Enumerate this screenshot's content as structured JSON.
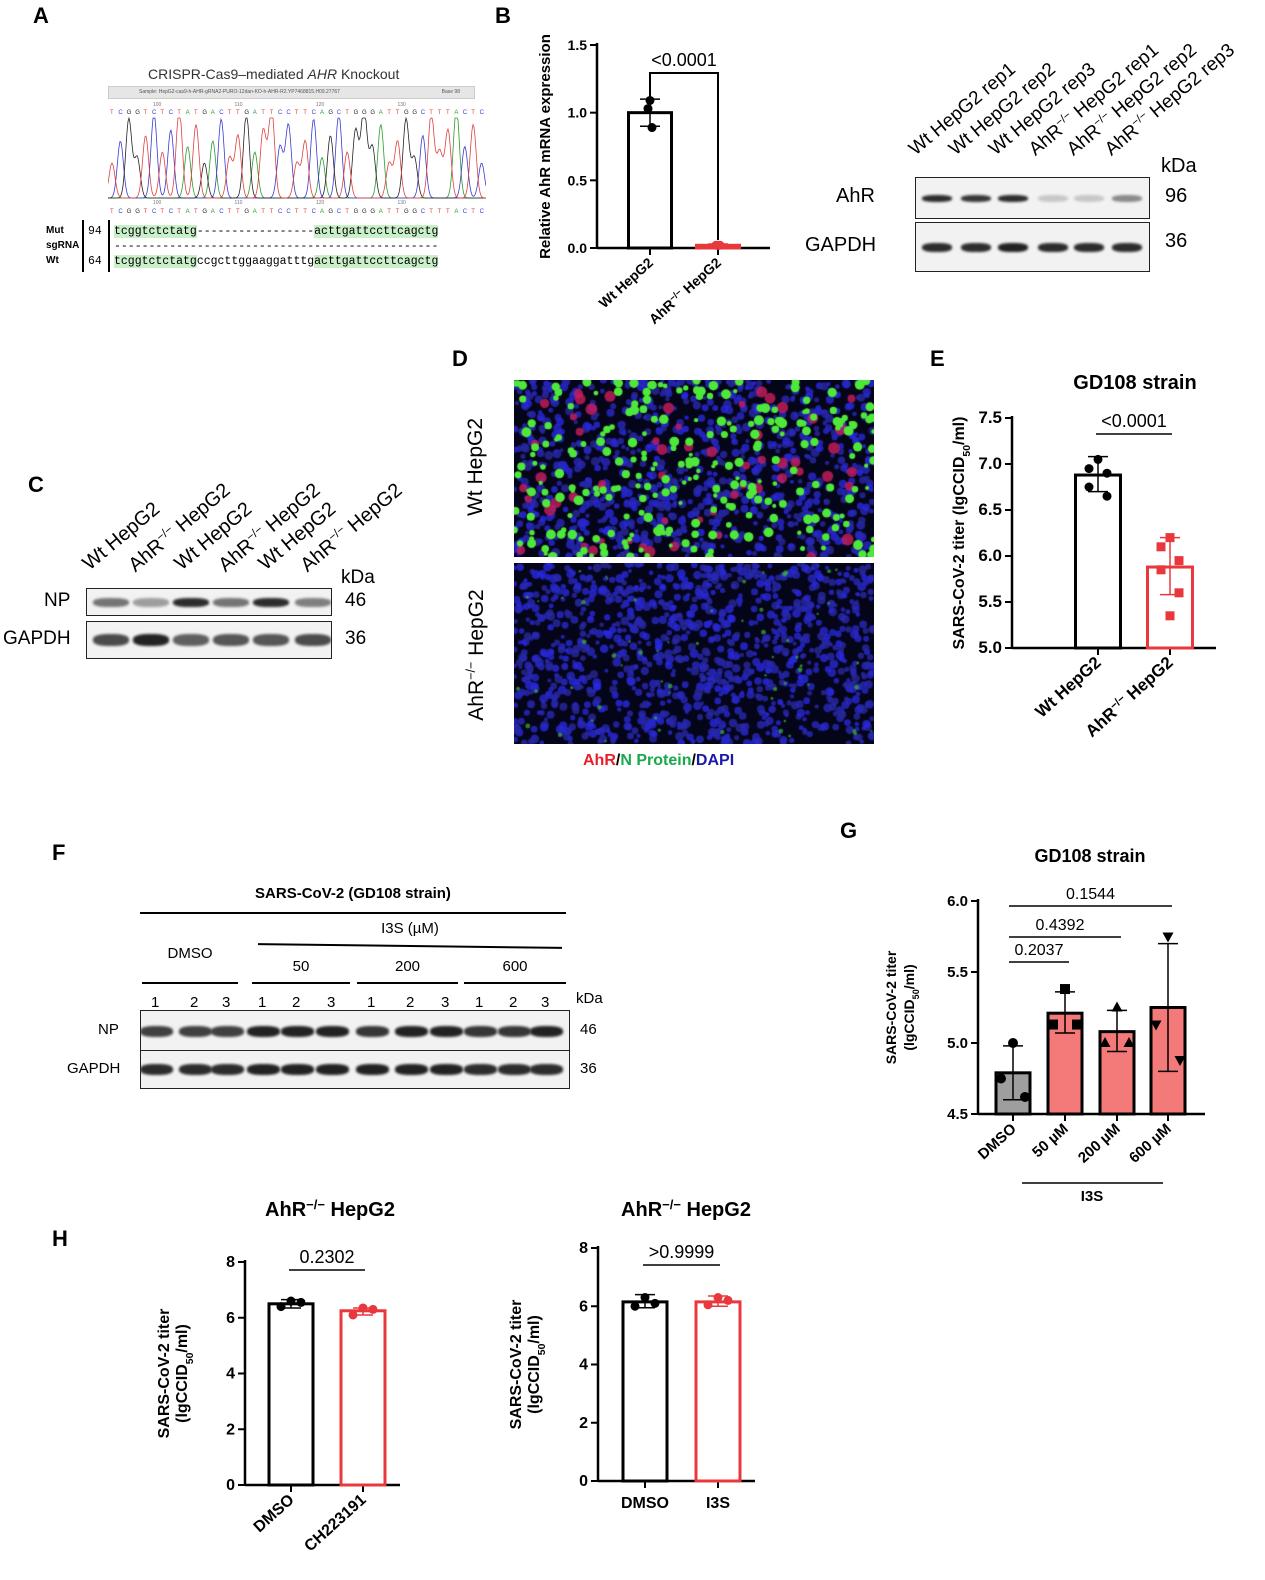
{
  "panels": {
    "A": "A",
    "B": "B",
    "C": "C",
    "D": "D",
    "E": "E",
    "F": "F",
    "G": "G",
    "H": "H"
  },
  "panelA": {
    "title_pre": "CRISPR-Cas9–mediated ",
    "title_gene": "AHR",
    "title_post": " Knockout",
    "header_sample": "Sample: HepG2-cas9-h-AHR-gRNA2-PURO-12dan-KO-h-AHR-R2.YP7468815.H09.27767",
    "header_base": "Base 98",
    "read_bases": "TCGGTCTCTATGACTTGATTCCTTCAGCTGGGATTGGCTTTACTC",
    "position_ticks": [
      "100",
      "110",
      "120",
      "130"
    ],
    "rows": [
      {
        "label": "Mut",
        "num": "94",
        "seq_a": "tcggtctctatg",
        "seq_mid": "-----------------",
        "seq_b": "acttgattccttcagctg"
      },
      {
        "label": "sgRNA",
        "num": "",
        "seq_a": "",
        "seq_mid": "-----------------------------------------------",
        "seq_b": ""
      },
      {
        "label": "Wt",
        "num": "64",
        "seq_a": "tcggtctctatg",
        "seq_mid": "ccgcttggaaggatttg",
        "seq_b": "acttgattccttcagctg"
      }
    ]
  },
  "blotB": {
    "lanes": [
      "Wt HepG2 rep1",
      "Wt HepG2 rep2",
      "Wt HepG2 rep3",
      "AhR−/− HepG2 rep1",
      "AhR−/− HepG2 rep2",
      "AhR−/− HepG2 rep3"
    ],
    "rows": [
      {
        "label": "AhR",
        "kda": "96"
      },
      {
        "label": "GAPDH",
        "kda": "36"
      }
    ],
    "kda_label": "kDa"
  },
  "blotC": {
    "lanes": [
      "Wt HepG2",
      "AhR−/− HepG2",
      "Wt HepG2",
      "AhR−/− HepG2",
      "Wt HepG2",
      "AhR−/− HepG2"
    ],
    "rows": [
      {
        "label": "NP",
        "kda": "46"
      },
      {
        "label": "GAPDH",
        "kda": "36"
      }
    ],
    "kda_label": "kDa"
  },
  "panelD": {
    "row_labels": [
      "Wt HepG2",
      "AhR−/− HepG2"
    ],
    "caption": {
      "ahr": "AhR",
      "sep1": "/",
      "np": "N Protein",
      "sep2": "/",
      "dapi": "DAPI"
    },
    "colors": {
      "ahr": "#e8202a",
      "np": "#19a84a",
      "dapi": "#1a1aa8"
    }
  },
  "blotF": {
    "title": "SARS-CoV-2 (GD108 strain)",
    "treatment": "I3S (µM)",
    "groups": [
      "DMSO",
      "50",
      "200",
      "600"
    ],
    "lane_numbers": [
      "1",
      "2",
      "3",
      "1",
      "2",
      "3",
      "1",
      "2",
      "3",
      "1",
      "2",
      "3"
    ],
    "rows": [
      {
        "label": "NP",
        "kda": "46"
      },
      {
        "label": "GAPDH",
        "kda": "36"
      }
    ],
    "kda_label": "kDa"
  },
  "panelG": {
    "group_label": "I3S"
  },
  "colors": {
    "red": "#e8383d",
    "salmon": "#f47a7a",
    "gray": "#9e9e9e",
    "black": "#000000"
  },
  "chart_data": [
    {
      "id": "B",
      "type": "bar",
      "title": "",
      "ylabel": [
        "Relative AhR mRNA expression"
      ],
      "ylim": [
        0,
        1.5
      ],
      "yticks": [
        "0.0",
        "0.5",
        "1.0",
        "1.5"
      ],
      "categories": [
        "Wt HepG2",
        "AhR−/− HepG2"
      ],
      "series": [
        {
          "name": "Wt HepG2",
          "mean": 1.0,
          "err": [
            0.9,
            1.1
          ],
          "points": [
            1.09,
            1.03,
            0.89
          ],
          "marker": "circle",
          "stroke": "#000000",
          "fill": "#ffffff"
        },
        {
          "name": "AhR−/− HepG2",
          "mean": 0.02,
          "err": [
            0.01,
            0.03
          ],
          "points": [
            0.02,
            0.02,
            0.02
          ],
          "marker": "circle",
          "stroke": "#e8383d",
          "fill": "#ffffff"
        }
      ],
      "comparisons": [
        {
          "from": 0,
          "to": 1,
          "p": "<0.0001"
        }
      ]
    },
    {
      "id": "E",
      "type": "bar",
      "title": "GD108 strain",
      "ylabel": [
        "SARS-CoV-2 titer (lgCCID",
        "50",
        "/ml)"
      ],
      "ylim": [
        5.0,
        7.5
      ],
      "yticks": [
        "5.0",
        "5.5",
        "6.0",
        "6.5",
        "7.0",
        "7.5"
      ],
      "categories": [
        "Wt HepG2",
        "AhR−/− HepG2"
      ],
      "series": [
        {
          "name": "Wt HepG2",
          "mean": 6.88,
          "err": [
            6.7,
            7.08
          ],
          "points": [
            7.05,
            6.95,
            6.9,
            6.75,
            6.65
          ],
          "marker": "circle",
          "stroke": "#000000",
          "fill": "#ffffff"
        },
        {
          "name": "AhR−/− HepG2",
          "mean": 5.88,
          "err": [
            5.58,
            6.2
          ],
          "points": [
            6.2,
            6.1,
            5.95,
            5.85,
            5.6,
            5.35
          ],
          "marker": "square",
          "stroke": "#e8383d",
          "fill": "#ffffff"
        }
      ],
      "comparisons": [
        {
          "from": 0,
          "to": 1,
          "p": "<0.0001"
        }
      ]
    },
    {
      "id": "G",
      "type": "bar",
      "title": "GD108 strain",
      "ylabel": [
        "SARS-CoV-2 titer",
        "(lgCCID",
        "50",
        "/ml)"
      ],
      "ylim": [
        4.5,
        6.0
      ],
      "yticks": [
        "4.5",
        "5.0",
        "5.5",
        "6.0"
      ],
      "categories": [
        "DMSO",
        "50 µM",
        "200 µM",
        "600 µM"
      ],
      "series": [
        {
          "name": "DMSO",
          "mean": 4.79,
          "err": [
            4.6,
            4.98
          ],
          "points": [
            5.0,
            4.75,
            4.62
          ],
          "marker": "circle",
          "stroke": "#000000",
          "fill": "#9e9e9e"
        },
        {
          "name": "50 µM",
          "mean": 5.21,
          "err": [
            5.07,
            5.36
          ],
          "points": [
            5.38,
            5.13,
            5.13
          ],
          "marker": "square",
          "stroke": "#000000",
          "fill": "#f47a7a"
        },
        {
          "name": "200 µM",
          "mean": 5.08,
          "err": [
            4.94,
            5.23
          ],
          "points": [
            5.25,
            5.0,
            5.0
          ],
          "marker": "triangle",
          "stroke": "#000000",
          "fill": "#f47a7a"
        },
        {
          "name": "600 µM",
          "mean": 5.25,
          "err": [
            4.8,
            5.7
          ],
          "points": [
            5.75,
            5.13,
            4.88
          ],
          "marker": "triangle-down",
          "stroke": "#000000",
          "fill": "#f47a7a"
        }
      ],
      "comparisons": [
        {
          "from": 0,
          "to": 1,
          "p": "0.2037"
        },
        {
          "from": 0,
          "to": 2,
          "p": "0.4392"
        },
        {
          "from": 0,
          "to": 3,
          "p": "0.1544"
        }
      ]
    },
    {
      "id": "H1",
      "type": "bar",
      "title": "AhR−/− HepG2",
      "ylabel": [
        "SARS-CoV-2 titer",
        "(lgCCID",
        "50",
        "/ml)"
      ],
      "ylim": [
        0,
        8
      ],
      "yticks": [
        "0",
        "2",
        "4",
        "6",
        "8"
      ],
      "categories": [
        "DMSO",
        "CH223191"
      ],
      "series": [
        {
          "name": "DMSO",
          "mean": 6.5,
          "err": [
            6.35,
            6.65
          ],
          "points": [
            6.6,
            6.4,
            6.55
          ],
          "marker": "circle",
          "stroke": "#000000",
          "fill": "#ffffff"
        },
        {
          "name": "CH223191",
          "mean": 6.25,
          "err": [
            6.1,
            6.35
          ],
          "points": [
            6.35,
            6.1,
            6.3
          ],
          "marker": "circle",
          "stroke": "#e8383d",
          "fill": "#ffffff"
        }
      ],
      "comparisons": [
        {
          "from": 0,
          "to": 1,
          "p": "0.2302"
        }
      ]
    },
    {
      "id": "H2",
      "type": "bar",
      "title": "AhR−/− HepG2",
      "ylabel": [
        "SARS-CoV-2 titer",
        "(lgCCID",
        "50",
        "/ml)"
      ],
      "ylim": [
        0,
        8
      ],
      "yticks": [
        "0",
        "2",
        "4",
        "6",
        "8"
      ],
      "categories": [
        "DMSO",
        "I3S"
      ],
      "series": [
        {
          "name": "DMSO",
          "mean": 6.15,
          "err": [
            5.95,
            6.4
          ],
          "points": [
            6.3,
            6.0,
            6.1
          ],
          "marker": "circle",
          "stroke": "#000000",
          "fill": "#ffffff"
        },
        {
          "name": "I3S",
          "mean": 6.15,
          "err": [
            6.0,
            6.35
          ],
          "points": [
            6.3,
            6.05,
            6.2
          ],
          "marker": "circle",
          "stroke": "#e8383d",
          "fill": "#ffffff"
        }
      ],
      "comparisons": [
        {
          "from": 0,
          "to": 1,
          "p": ">0.9999"
        }
      ]
    }
  ]
}
